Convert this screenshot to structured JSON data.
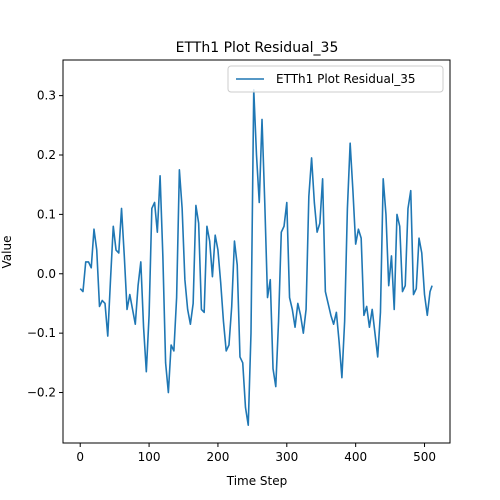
{
  "chart_data": {
    "type": "line",
    "title": "ETTh1 Plot Residual_35",
    "xlabel": "Time Step",
    "ylabel": "Value",
    "xlim": [
      -25,
      537
    ],
    "ylim": [
      -0.285,
      0.36
    ],
    "xticks": [
      0,
      100,
      200,
      300,
      400,
      500
    ],
    "yticks": [
      -0.2,
      -0.1,
      0.0,
      0.1,
      0.2,
      0.3
    ],
    "ytick_labels": [
      "−0.2",
      "−0.1",
      "0.0",
      "0.1",
      "0.2",
      "0.3"
    ],
    "grid": false,
    "legend": "upper right",
    "series": [
      {
        "name": "ETTh1 Plot Residual_35",
        "color": "#1f77b4",
        "x": [
          0,
          4,
          8,
          12,
          16,
          20,
          24,
          28,
          32,
          36,
          40,
          44,
          48,
          52,
          56,
          60,
          64,
          68,
          72,
          76,
          80,
          84,
          88,
          92,
          96,
          100,
          104,
          108,
          112,
          116,
          120,
          124,
          128,
          132,
          136,
          140,
          144,
          148,
          152,
          156,
          160,
          164,
          168,
          172,
          176,
          180,
          184,
          188,
          192,
          196,
          200,
          204,
          208,
          212,
          216,
          220,
          224,
          228,
          232,
          236,
          240,
          244,
          248,
          252,
          256,
          260,
          264,
          268,
          272,
          276,
          280,
          284,
          288,
          292,
          296,
          300,
          304,
          308,
          312,
          316,
          320,
          324,
          328,
          332,
          336,
          340,
          344,
          348,
          352,
          356,
          360,
          364,
          368,
          372,
          376,
          380,
          384,
          388,
          392,
          396,
          400,
          404,
          408,
          412,
          416,
          420,
          424,
          428,
          432,
          436,
          440,
          444,
          448,
          452,
          456,
          460,
          464,
          468,
          472,
          476,
          480,
          484,
          488,
          492,
          496,
          500,
          504,
          508,
          511
        ],
        "values": [
          -0.025,
          -0.03,
          0.02,
          0.02,
          0.01,
          0.075,
          0.04,
          -0.055,
          -0.045,
          -0.05,
          -0.105,
          -0.01,
          0.08,
          0.04,
          0.035,
          0.11,
          0.03,
          -0.06,
          -0.035,
          -0.06,
          -0.085,
          -0.02,
          0.02,
          -0.09,
          -0.165,
          -0.07,
          0.11,
          0.12,
          0.07,
          0.165,
          0.03,
          -0.15,
          -0.2,
          -0.12,
          -0.13,
          -0.04,
          0.175,
          0.11,
          -0.01,
          -0.06,
          -0.085,
          -0.05,
          0.115,
          0.085,
          -0.06,
          -0.065,
          0.08,
          0.055,
          -0.005,
          0.065,
          0.04,
          -0.015,
          -0.08,
          -0.13,
          -0.12,
          -0.055,
          0.055,
          0.015,
          -0.14,
          -0.15,
          -0.225,
          -0.255,
          -0.1,
          0.31,
          0.2,
          0.12,
          0.26,
          0.12,
          -0.04,
          -0.01,
          -0.16,
          -0.19,
          -0.08,
          0.07,
          0.08,
          0.12,
          -0.04,
          -0.06,
          -0.09,
          -0.05,
          -0.07,
          -0.1,
          -0.06,
          0.13,
          0.195,
          0.12,
          0.07,
          0.085,
          0.16,
          -0.03,
          -0.05,
          -0.07,
          -0.085,
          -0.065,
          -0.115,
          -0.175,
          -0.08,
          0.11,
          0.22,
          0.14,
          0.05,
          0.075,
          0.06,
          -0.07,
          -0.055,
          -0.09,
          -0.06,
          -0.1,
          -0.14,
          -0.065,
          0.16,
          0.1,
          -0.02,
          0.03,
          -0.06,
          0.1,
          0.08,
          -0.03,
          -0.02,
          0.11,
          0.14,
          -0.035,
          -0.025,
          0.06,
          0.035,
          -0.035,
          -0.07,
          -0.03,
          -0.02
        ]
      }
    ]
  }
}
